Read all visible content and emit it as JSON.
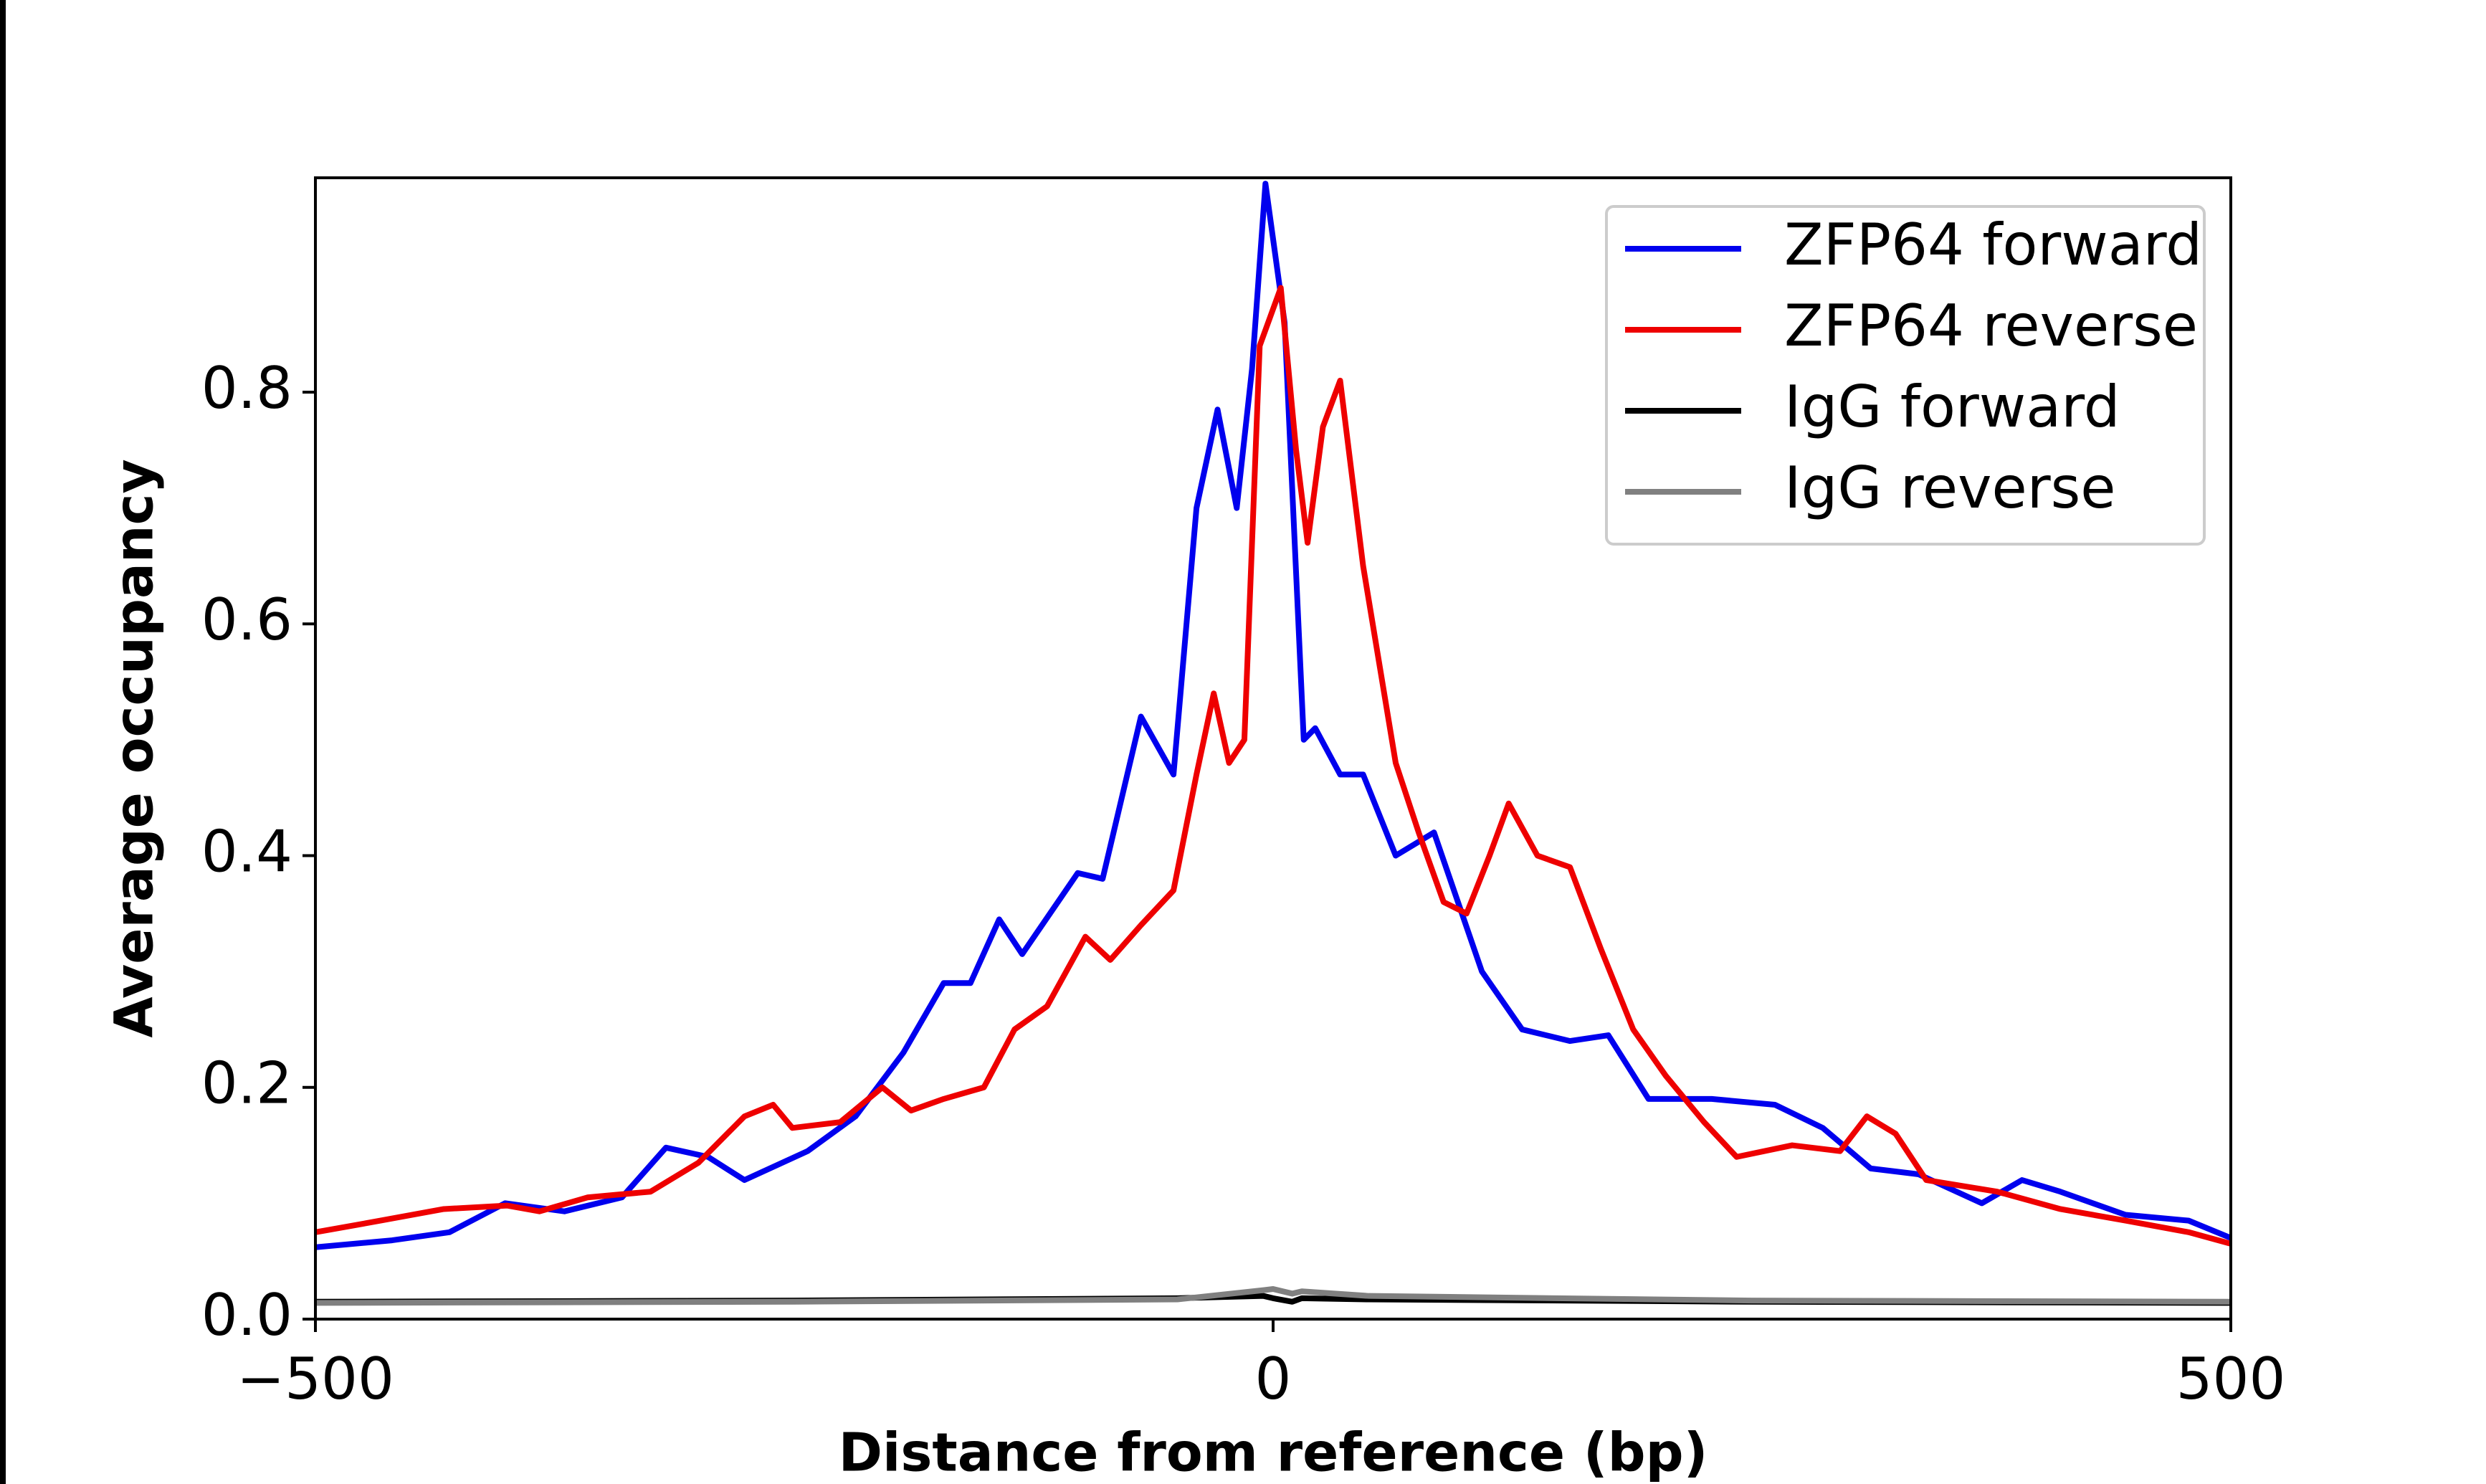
{
  "chart_data": {
    "type": "line",
    "xlabel": "Distance from reference (bp)",
    "ylabel": "Average occupancy",
    "xlim": [
      -500,
      500
    ],
    "ylim": [
      0,
      0.985
    ],
    "xticks": [
      {
        "value": -500,
        "label": "−500"
      },
      0,
      500
    ],
    "yticks": [
      {
        "value": 0,
        "label": "0.0"
      },
      0.2,
      0.4,
      0.6,
      0.8
    ],
    "legend": "upper right",
    "series": [
      {
        "name": "ZFP64 forward",
        "color": "#0000ee",
        "x": [
          -500,
          -460,
          -430,
          -401,
          -370,
          -340,
          -317,
          -295,
          -276,
          -243,
          -218,
          -193,
          -172,
          -158,
          -143,
          -131,
          -102,
          -89,
          -69,
          -52,
          -40,
          -29,
          -19,
          -11,
          -4,
          6,
          16,
          22,
          35,
          47,
          64,
          84,
          109,
          130,
          155,
          175,
          196,
          229,
          262,
          287,
          312,
          337,
          370,
          391,
          411,
          445,
          478,
          500
        ],
        "values": [
          0.062,
          0.068,
          0.075,
          0.1,
          0.093,
          0.105,
          0.148,
          0.14,
          0.12,
          0.145,
          0.175,
          0.23,
          0.29,
          0.29,
          0.345,
          0.315,
          0.385,
          0.38,
          0.52,
          0.47,
          0.7,
          0.785,
          0.7,
          0.82,
          0.98,
          0.86,
          0.5,
          0.51,
          0.47,
          0.47,
          0.4,
          0.42,
          0.3,
          0.25,
          0.24,
          0.245,
          0.19,
          0.19,
          0.185,
          0.165,
          0.13,
          0.125,
          0.1,
          0.12,
          0.11,
          0.09,
          0.085,
          0.07
        ]
      },
      {
        "name": "ZFP64 reverse",
        "color": "#ee0000",
        "x": [
          -500,
          -466,
          -433,
          -400,
          -383,
          -358,
          -325,
          -300,
          -276,
          -261,
          -251,
          -226,
          -204,
          -189,
          -172,
          -151,
          -135,
          -118,
          -98,
          -85,
          -69,
          -52,
          -40,
          -31,
          -23,
          -15,
          -7,
          4,
          12,
          18,
          26,
          35,
          47,
          64,
          76,
          89,
          101,
          113,
          123,
          138,
          155,
          171,
          188,
          205,
          225,
          242,
          271,
          296,
          310,
          325,
          341,
          378,
          411,
          445,
          478,
          500
        ],
        "values": [
          0.075,
          0.085,
          0.095,
          0.098,
          0.093,
          0.105,
          0.11,
          0.135,
          0.175,
          0.185,
          0.165,
          0.17,
          0.2,
          0.18,
          0.19,
          0.2,
          0.25,
          0.27,
          0.33,
          0.31,
          0.34,
          0.37,
          0.47,
          0.54,
          0.48,
          0.5,
          0.84,
          0.89,
          0.75,
          0.67,
          0.77,
          0.81,
          0.65,
          0.48,
          0.42,
          0.36,
          0.35,
          0.4,
          0.445,
          0.4,
          0.39,
          0.32,
          0.25,
          0.21,
          0.17,
          0.14,
          0.15,
          0.145,
          0.175,
          0.16,
          0.12,
          0.11,
          0.095,
          0.085,
          0.075,
          0.065
        ]
      },
      {
        "name": "IgG forward",
        "color": "#000000",
        "x": [
          -500,
          -250,
          -50,
          -5,
          0,
          10,
          15,
          50,
          250,
          500
        ],
        "values": [
          0.015,
          0.016,
          0.018,
          0.02,
          0.018,
          0.015,
          0.018,
          0.017,
          0.015,
          0.014
        ]
      },
      {
        "name": "IgG reverse",
        "color": "#808080",
        "x": [
          -500,
          -250,
          -50,
          -5,
          0,
          10,
          15,
          50,
          250,
          500
        ],
        "values": [
          0.014,
          0.015,
          0.017,
          0.025,
          0.026,
          0.022,
          0.024,
          0.02,
          0.016,
          0.015
        ]
      }
    ]
  }
}
